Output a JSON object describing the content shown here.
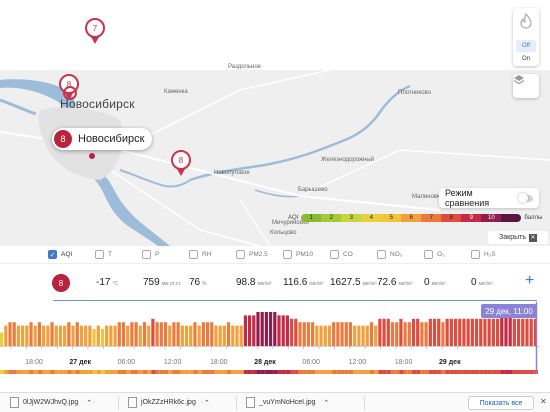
{
  "map": {
    "cities": {
      "major_label": "Новосибирск",
      "places": [
        "Раздольное",
        "Каменка",
        "Плотниково",
        "Железнодорожный",
        "Барышево",
        "Новолуговое",
        "Мичуринский",
        "Кольцово",
        "Малиновка"
      ]
    },
    "pins": [
      {
        "value": "7"
      },
      {
        "value": "8"
      },
      {
        "value": "8"
      }
    ],
    "callout": {
      "value": "8",
      "label": "Новосибирск"
    },
    "fire_control": {
      "off_label": "Off",
      "on_label": "On"
    },
    "compare": {
      "label": "Режим сравнения"
    },
    "legend": {
      "prefix": "AQI",
      "suffix": "баллы",
      "levels": [
        {
          "label": "1",
          "color": "#8cba2e"
        },
        {
          "label": "2",
          "color": "#a6c93a"
        },
        {
          "label": "3",
          "color": "#c6d43e"
        },
        {
          "label": "4",
          "color": "#e8d13c"
        },
        {
          "label": "5",
          "color": "#f3c338"
        },
        {
          "label": "6",
          "color": "#f2a03b"
        },
        {
          "label": "7",
          "color": "#ec7a3c"
        },
        {
          "label": "8",
          "color": "#de4b3f"
        },
        {
          "label": "9",
          "color": "#c42a46"
        },
        {
          "label": "10",
          "color": "#8f1d4d"
        },
        {
          "label": "",
          "color": "#5b1541"
        }
      ]
    },
    "close_label": "Закрыть"
  },
  "params": [
    {
      "label": "AQI",
      "checked": true
    },
    {
      "label": "T",
      "checked": false
    },
    {
      "label": "P",
      "checked": false
    },
    {
      "label": "RH",
      "checked": false
    },
    {
      "label": "PM2.5",
      "checked": false
    },
    {
      "label": "PM10",
      "checked": false
    },
    {
      "label": "CO",
      "checked": false
    },
    {
      "label": "NO₂",
      "checked": false
    },
    {
      "label": "O₃",
      "checked": false
    },
    {
      "label": "H₂S",
      "checked": false
    }
  ],
  "values": {
    "aqi": "8",
    "t": {
      "v": "-17",
      "u": "°C"
    },
    "p": {
      "v": "759",
      "u": "мм рт.ст."
    },
    "rh": {
      "v": "76",
      "u": "%"
    },
    "pm25": {
      "v": "98.8",
      "u": "мкг/м³"
    },
    "pm10": {
      "v": "116.6",
      "u": "мкг/м³"
    },
    "co": {
      "v": "1627.5",
      "u": "мкг/м³"
    },
    "no2": {
      "v": "72.6",
      "u": "мкг/м³"
    },
    "o3": {
      "v": "0",
      "u": "мкг/м³"
    },
    "h2s": {
      "v": "0",
      "u": "мкг/м³"
    }
  },
  "chart_data": {
    "type": "bar",
    "title": "",
    "xlabel": "",
    "ylabel": "AQI",
    "x_tick_labels": [
      "18:00",
      "27 дек",
      "06:00",
      "12:00",
      "18:00",
      "28 дек",
      "06:00",
      "12:00",
      "18:00",
      "29 дек"
    ],
    "values": [
      4,
      6,
      7,
      7,
      6,
      6,
      6,
      7,
      6,
      7,
      6,
      6,
      7,
      6,
      6,
      6,
      7,
      6,
      7,
      6,
      6,
      6,
      5,
      6,
      5,
      6,
      6,
      6,
      7,
      7,
      6,
      7,
      7,
      6,
      7,
      6,
      8,
      7,
      7,
      7,
      6,
      7,
      7,
      6,
      6,
      6,
      7,
      6,
      7,
      7,
      7,
      6,
      6,
      6,
      7,
      6,
      6,
      6,
      9,
      9,
      9,
      10,
      10,
      10,
      10,
      10,
      9,
      9,
      9,
      8,
      8,
      7,
      7,
      7,
      7,
      6,
      6,
      6,
      6,
      7,
      7,
      7,
      7,
      7,
      6,
      6,
      6,
      6,
      7,
      6,
      8,
      8,
      8,
      7,
      7,
      8,
      7,
      7,
      8,
      8,
      7,
      7,
      8,
      8,
      8,
      7,
      8,
      8,
      8,
      8,
      8,
      8,
      8,
      8,
      8,
      8,
      8,
      8,
      8,
      9,
      9,
      9,
      8,
      8,
      8,
      8,
      8,
      8
    ],
    "ylim": [
      0,
      10
    ],
    "tooltip": "29 дек, 11:00"
  },
  "downloads": {
    "items": [
      {
        "name": "0lJjW2WJhvQ.jpg"
      },
      {
        "name": "jOkZZzHRk6c.jpg"
      },
      {
        "name": "_vuYmNoHceI.jpg"
      }
    ],
    "show_all": "Показать все"
  }
}
